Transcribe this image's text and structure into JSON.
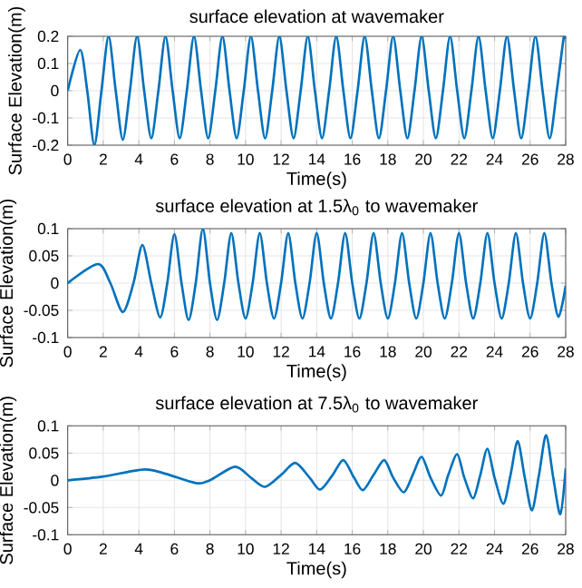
{
  "chart_data": [
    {
      "type": "line",
      "title": "surface elevation at wavemaker",
      "xlabel": "Time(s)",
      "ylabel": "Surface Elevation(m)",
      "color": "#0072bd",
      "line_style": "solid",
      "grid": true,
      "xlim": [
        0,
        28
      ],
      "xticks": [
        0,
        2,
        4,
        6,
        8,
        10,
        12,
        14,
        16,
        18,
        20,
        22,
        24,
        26,
        28
      ],
      "ylim": [
        -0.2,
        0.2
      ],
      "yticks": [
        -0.2,
        -0.1,
        0,
        0.1,
        0.2
      ],
      "x": [
        0,
        0.7,
        1.1,
        1.5,
        1.9,
        2.3,
        2.7,
        3.1,
        3.5,
        3.9,
        4.3,
        4.7,
        5.1,
        5.5,
        5.9,
        6.3,
        6.7,
        7.1,
        7.5,
        7.9,
        8.3,
        8.7,
        9.1,
        9.5,
        9.9,
        10.3,
        10.7,
        11.1,
        11.5,
        11.9,
        12.3,
        12.7,
        13.1,
        13.5,
        13.9,
        14.3,
        14.7,
        15.1,
        15.5,
        15.9,
        16.3,
        16.7,
        17.1,
        17.5,
        17.9,
        18.3,
        18.7,
        19.1,
        19.5,
        19.9,
        20.3,
        20.7,
        21.1,
        21.5,
        21.9,
        22.3,
        22.7,
        23.1,
        23.5,
        23.9,
        24.3,
        24.7,
        25.1,
        25.5,
        25.9,
        26.3,
        26.7,
        27.1,
        27.5,
        27.9,
        28
      ],
      "values": [
        0,
        0.15,
        0,
        -0.2,
        0,
        0.2,
        0,
        -0.18,
        0,
        0.2,
        0,
        -0.175,
        0,
        0.2,
        0,
        -0.175,
        0,
        0.2,
        0,
        -0.175,
        0,
        0.2,
        0,
        -0.175,
        0,
        0.2,
        0,
        -0.175,
        0,
        0.2,
        0,
        -0.175,
        0,
        0.2,
        0,
        -0.175,
        0,
        0.2,
        0,
        -0.175,
        0,
        0.2,
        0,
        -0.175,
        0,
        0.2,
        0,
        -0.175,
        0,
        0.2,
        0,
        -0.175,
        0,
        0.2,
        0,
        -0.175,
        0,
        0.2,
        0,
        -0.175,
        0,
        0.2,
        0,
        -0.175,
        0,
        0.2,
        0,
        -0.175,
        0,
        0.2,
        0.19
      ]
    },
    {
      "type": "line",
      "title": "surface elevation at 1.5λ$_{0}$ to wavemaker",
      "xlabel": "Time(s)",
      "ylabel": "Surface Elevation(m)",
      "color": "#0072bd",
      "line_style": "solid",
      "grid": true,
      "xlim": [
        0,
        28
      ],
      "xticks": [
        0,
        2,
        4,
        6,
        8,
        10,
        12,
        14,
        16,
        18,
        20,
        22,
        24,
        26,
        28
      ],
      "ylim": [
        -0.1,
        0.1
      ],
      "yticks": [
        -0.1,
        -0.05,
        0,
        0.05,
        0.1
      ],
      "x": [
        0,
        1.7,
        2.4,
        3.1,
        3.7,
        4.2,
        4.7,
        5.2,
        5.6,
        6.0,
        6.4,
        6.8,
        7.2,
        7.6,
        8.0,
        8.4,
        8.8,
        9.2,
        9.6,
        10.0,
        10.4,
        10.8,
        11.2,
        11.6,
        12.0,
        12.4,
        12.8,
        13.2,
        13.6,
        14.0,
        14.4,
        14.8,
        15.2,
        15.6,
        16.0,
        16.4,
        16.8,
        17.2,
        17.6,
        18.0,
        18.4,
        18.8,
        19.2,
        19.6,
        20.0,
        20.4,
        20.8,
        21.2,
        21.6,
        22.0,
        22.4,
        22.8,
        23.2,
        23.6,
        24.0,
        24.4,
        24.8,
        25.2,
        25.6,
        26.0,
        26.4,
        26.8,
        27.2,
        27.6,
        28
      ],
      "values": [
        0,
        0.035,
        0,
        -0.053,
        0,
        0.07,
        0,
        -0.063,
        0,
        0.09,
        0,
        -0.068,
        0,
        0.1,
        0,
        -0.068,
        0,
        0.092,
        0,
        -0.065,
        0,
        0.092,
        0,
        -0.065,
        0,
        0.092,
        0,
        -0.065,
        0,
        0.092,
        0,
        -0.065,
        0,
        0.092,
        0,
        -0.065,
        0,
        0.092,
        0,
        -0.065,
        0,
        0.092,
        0,
        -0.065,
        0,
        0.092,
        0,
        -0.065,
        0,
        0.092,
        0,
        -0.065,
        0,
        0.092,
        0,
        -0.065,
        0,
        0.092,
        0,
        -0.065,
        0,
        0.092,
        0,
        -0.062,
        -0.005
      ]
    },
    {
      "type": "line",
      "title": "surface elevation at 7.5λ$_{0}$ to wavemaker",
      "xlabel": "Time(s)",
      "ylabel": "Surface Elevation(m)",
      "color": "#0072bd",
      "line_style": "solid",
      "grid": true,
      "xlim": [
        0,
        28
      ],
      "xticks": [
        0,
        2,
        4,
        6,
        8,
        10,
        12,
        14,
        16,
        18,
        20,
        22,
        24,
        26,
        28
      ],
      "ylim": [
        -0.1,
        0.1
      ],
      "yticks": [
        -0.1,
        -0.05,
        0,
        0.05,
        0.1
      ],
      "x": [
        0,
        2,
        4.3,
        5.5,
        7.2,
        8,
        9.4,
        10.3,
        11.1,
        12,
        12.8,
        13.6,
        14.2,
        14.9,
        15.5,
        16.1,
        16.6,
        17.2,
        17.8,
        18.3,
        18.9,
        19.4,
        19.9,
        20.4,
        21.0,
        21.4,
        21.9,
        22.3,
        22.8,
        23.2,
        23.6,
        24.0,
        24.5,
        24.9,
        25.3,
        25.7,
        26.1,
        26.5,
        26.9,
        27.3,
        27.7,
        28
      ],
      "values": [
        0,
        0.007,
        0.02,
        0.012,
        -0.005,
        0,
        0.025,
        0.005,
        -0.012,
        0.01,
        0.032,
        0.005,
        -0.017,
        0.01,
        0.037,
        0.005,
        -0.018,
        0.01,
        0.037,
        0.005,
        -0.022,
        0.01,
        0.043,
        0.005,
        -0.028,
        0.01,
        0.048,
        0.005,
        -0.033,
        0.01,
        0.058,
        0.005,
        -0.043,
        0.01,
        0.072,
        0.005,
        -0.055,
        0.01,
        0.083,
        0.005,
        -0.062,
        0.022
      ]
    }
  ]
}
